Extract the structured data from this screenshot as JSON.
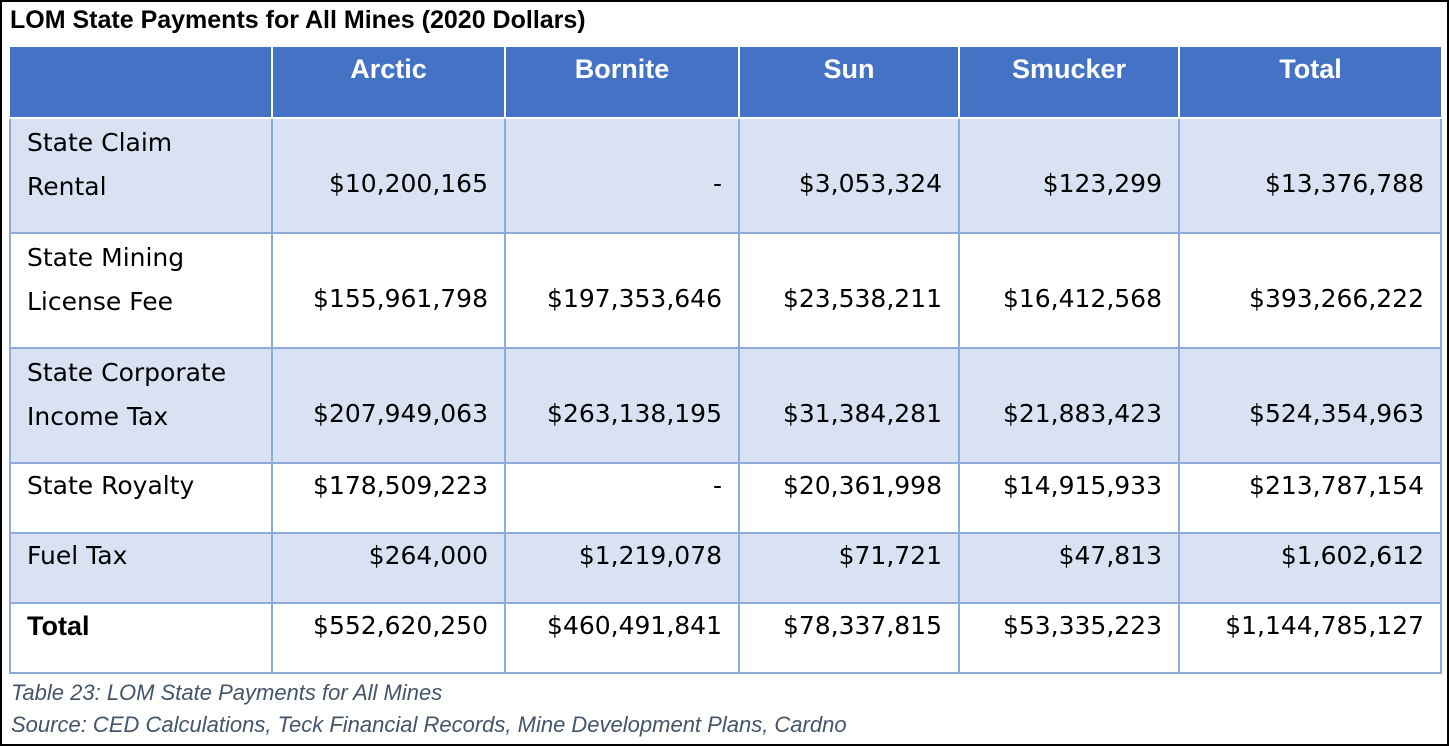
{
  "title": "LOM State Payments for All Mines (2020 Dollars)",
  "table": {
    "columns": [
      "",
      "Arctic",
      "Bornite",
      "Sun",
      "Smucker",
      "Total"
    ],
    "rows": [
      {
        "label_line1": "State Claim",
        "label_line2": "Rental",
        "values": [
          "$10,200,165",
          "-",
          "$3,053,324",
          "$123,299",
          "$13,376,788"
        ]
      },
      {
        "label_line1": "State Mining",
        "label_line2": "License Fee",
        "values": [
          "$155,961,798",
          "$197,353,646",
          "$23,538,211",
          "$16,412,568",
          "$393,266,222"
        ]
      },
      {
        "label_line1": "State Corporate",
        "label_line2": "Income Tax",
        "values": [
          "$207,949,063",
          "$263,138,195",
          "$31,384,281",
          "$21,883,423",
          "$524,354,963"
        ]
      },
      {
        "label_line1": "State Royalty",
        "values": [
          "$178,509,223",
          "-",
          "$20,361,998",
          "$14,915,933",
          "$213,787,154"
        ]
      },
      {
        "label_line1": "Fuel Tax",
        "values": [
          "$264,000",
          "$1,219,078",
          "$71,721",
          "$47,813",
          "$1,602,612"
        ]
      },
      {
        "label_line1": "Total",
        "values": [
          "$552,620,250",
          "$460,491,841",
          "$78,337,815",
          "$53,335,223",
          "$1,144,785,127"
        ]
      }
    ]
  },
  "caption": {
    "line1": "Table 23: LOM State Payments for All Mines",
    "line2": "Source: CED Calculations, Teck Financial Records, Mine Development Plans, Cardno"
  },
  "colors": {
    "header_bg": "#4472c4",
    "shaded_row_bg": "#d9e2f3",
    "grid_line": "#8eaadb",
    "caption_text": "#44546a"
  }
}
